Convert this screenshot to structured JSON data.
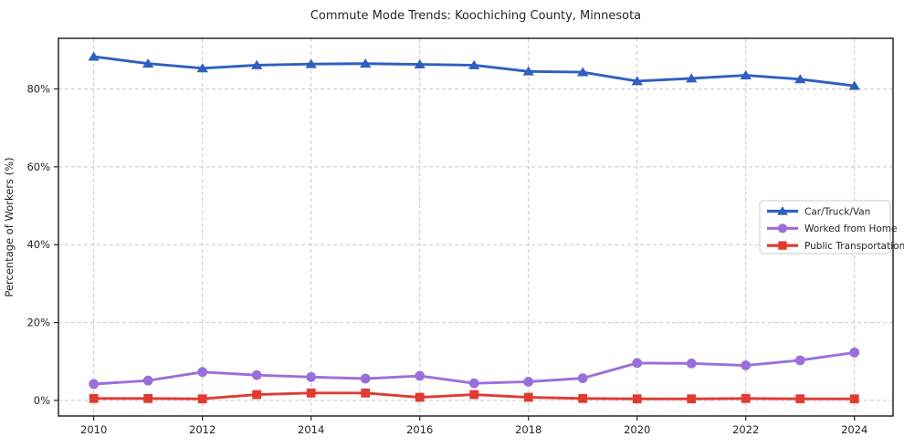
{
  "chart_data": {
    "type": "line",
    "title": "Commute Mode Trends: Koochiching County, Minnesota",
    "xlabel": "",
    "ylabel": "Percentage of Workers (%)",
    "x": [
      2010,
      2011,
      2012,
      2013,
      2014,
      2015,
      2016,
      2017,
      2018,
      2019,
      2020,
      2021,
      2022,
      2023,
      2024
    ],
    "xticks": [
      2010,
      2012,
      2014,
      2016,
      2018,
      2020,
      2022,
      2024
    ],
    "yticks": [
      0,
      20,
      40,
      60,
      80
    ],
    "ytick_labels": [
      "0%",
      "20%",
      "40%",
      "60%",
      "80%"
    ],
    "xlim": [
      2009.35,
      2024.71
    ],
    "ylim": [
      -4.0,
      93.0
    ],
    "grid": true,
    "grid_color": "#c9c9c9",
    "legend": {
      "position": "center-right",
      "entries": [
        "Car/Truck/Van",
        "Worked from Home",
        "Public Transportation"
      ]
    },
    "series": [
      {
        "name": "Car/Truck/Van",
        "color": "#2f5fc1",
        "marker": "triangle",
        "values": [
          88.3,
          86.5,
          85.3,
          86.1,
          86.4,
          86.5,
          86.3,
          86.1,
          84.5,
          84.3,
          82.0,
          82.7,
          83.5,
          82.5,
          80.8
        ]
      },
      {
        "name": "Worked from Home",
        "color": "#9b6fdb",
        "marker": "circle",
        "values": [
          4.2,
          5.1,
          7.3,
          6.5,
          6.0,
          5.6,
          6.3,
          4.4,
          4.8,
          5.7,
          9.6,
          9.5,
          9.0,
          10.3,
          12.3
        ]
      },
      {
        "name": "Public Transportation",
        "color": "#e03b32",
        "marker": "square",
        "values": [
          0.5,
          0.5,
          0.4,
          1.5,
          1.9,
          1.9,
          0.8,
          1.5,
          0.8,
          0.5,
          0.4,
          0.4,
          0.5,
          0.4,
          0.4
        ]
      }
    ]
  }
}
